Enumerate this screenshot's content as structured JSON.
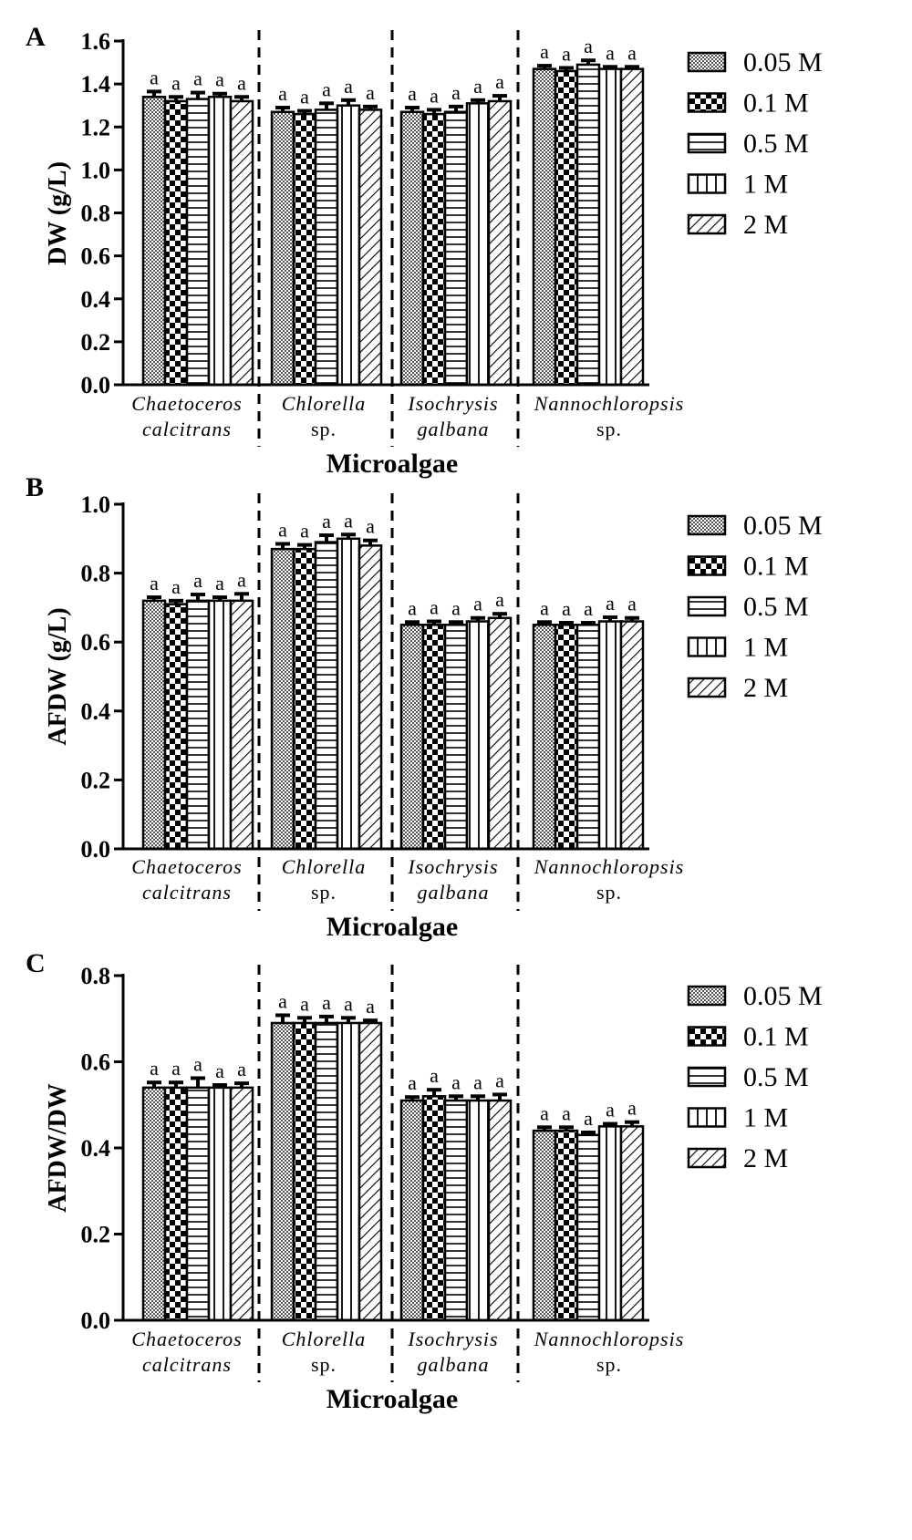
{
  "chart_data": [
    {
      "panel": "A",
      "type": "bar",
      "ylabel": "DW (g/L)",
      "xlabel": "Microalgae",
      "ylim": [
        0,
        1.6
      ],
      "yticks": [
        0.0,
        0.2,
        0.4,
        0.6,
        0.8,
        1.0,
        1.2,
        1.4,
        1.6
      ],
      "ytick_labels": [
        "0.0",
        "0.2",
        "0.4",
        "0.6",
        "0.8",
        "1.0",
        "1.2",
        "1.4",
        "1.6"
      ],
      "categories": [
        {
          "lines": [
            "Chaetoceros",
            "calcitrans"
          ],
          "italic": [
            true,
            true
          ]
        },
        {
          "lines": [
            "Chlorella",
            "sp."
          ],
          "italic": [
            true,
            false
          ]
        },
        {
          "lines": [
            "Isochrysis",
            "galbana"
          ],
          "italic": [
            true,
            true
          ]
        },
        {
          "lines": [
            "Nannochloropsis",
            "sp."
          ],
          "italic": [
            true,
            false
          ]
        }
      ],
      "legend": [
        "0.05 M",
        "0.1 M",
        "0.5 M",
        "1 M",
        "2 M"
      ],
      "series": [
        {
          "name": "0.05 M",
          "values": [
            1.34,
            1.27,
            1.27,
            1.47
          ],
          "errors": [
            0.025,
            0.02,
            0.02,
            0.015
          ]
        },
        {
          "name": "0.1 M",
          "values": [
            1.32,
            1.26,
            1.26,
            1.46
          ],
          "errors": [
            0.02,
            0.015,
            0.02,
            0.015
          ]
        },
        {
          "name": "0.5 M",
          "values": [
            1.33,
            1.28,
            1.27,
            1.49
          ],
          "errors": [
            0.03,
            0.03,
            0.025,
            0.02
          ]
        },
        {
          "name": "1 M",
          "values": [
            1.34,
            1.3,
            1.31,
            1.47
          ],
          "errors": [
            0.015,
            0.025,
            0.015,
            0.01
          ]
        },
        {
          "name": "2 M",
          "values": [
            1.32,
            1.28,
            1.32,
            1.47
          ],
          "errors": [
            0.02,
            0.015,
            0.025,
            0.01
          ]
        }
      ],
      "significance": [
        [
          "a",
          "a",
          "a",
          "a"
        ],
        [
          "a",
          "a",
          "a",
          "a"
        ],
        [
          "a",
          "a",
          "a",
          "a"
        ],
        [
          "a",
          "a",
          "a",
          "a"
        ],
        [
          "a",
          "a",
          "a",
          "a"
        ]
      ]
    },
    {
      "panel": "B",
      "type": "bar",
      "ylabel": "AFDW (g/L)",
      "xlabel": "Microalgae",
      "ylim": [
        0,
        1.0
      ],
      "yticks": [
        0.0,
        0.2,
        0.4,
        0.6,
        0.8,
        1.0
      ],
      "ytick_labels": [
        "0.0",
        "0.2",
        "0.4",
        "0.6",
        "0.8",
        "1.0"
      ],
      "categories": [
        {
          "lines": [
            "Chaetoceros",
            "calcitrans"
          ],
          "italic": [
            true,
            true
          ]
        },
        {
          "lines": [
            "Chlorella",
            "sp."
          ],
          "italic": [
            true,
            false
          ]
        },
        {
          "lines": [
            "Isochrysis",
            "galbana"
          ],
          "italic": [
            true,
            true
          ]
        },
        {
          "lines": [
            "Nannochloropsis",
            "sp."
          ],
          "italic": [
            true,
            false
          ]
        }
      ],
      "legend": [
        "0.05 M",
        "0.1 M",
        "0.5 M",
        "1 M",
        "2 M"
      ],
      "series": [
        {
          "name": "0.05 M",
          "values": [
            0.72,
            0.87,
            0.65,
            0.65
          ],
          "errors": [
            0.01,
            0.015,
            0.008,
            0.008
          ]
        },
        {
          "name": "0.1 M",
          "values": [
            0.71,
            0.87,
            0.65,
            0.65
          ],
          "errors": [
            0.01,
            0.012,
            0.01,
            0.006
          ]
        },
        {
          "name": "0.5 M",
          "values": [
            0.72,
            0.89,
            0.65,
            0.65
          ],
          "errors": [
            0.018,
            0.02,
            0.008,
            0.006
          ]
        },
        {
          "name": "1 M",
          "values": [
            0.72,
            0.9,
            0.66,
            0.66
          ],
          "errors": [
            0.01,
            0.012,
            0.01,
            0.012
          ]
        },
        {
          "name": "2 M",
          "values": [
            0.72,
            0.88,
            0.67,
            0.66
          ],
          "errors": [
            0.02,
            0.015,
            0.012,
            0.01
          ]
        }
      ],
      "significance": [
        [
          "a",
          "a",
          "a",
          "a"
        ],
        [
          "a",
          "a",
          "a",
          "a"
        ],
        [
          "a",
          "a",
          "a",
          "a"
        ],
        [
          "a",
          "a",
          "a",
          "a"
        ],
        [
          "a",
          "a",
          "a",
          "a"
        ]
      ]
    },
    {
      "panel": "C",
      "type": "bar",
      "ylabel": "AFDW/DW",
      "xlabel": "Microalgae",
      "ylim": [
        0,
        0.8
      ],
      "yticks": [
        0.0,
        0.2,
        0.4,
        0.6,
        0.8
      ],
      "ytick_labels": [
        "0.0",
        "0.2",
        "0.4",
        "0.6",
        "0.8"
      ],
      "categories": [
        {
          "lines": [
            "Chaetoceros",
            "calcitrans"
          ],
          "italic": [
            true,
            true
          ]
        },
        {
          "lines": [
            "Chlorella",
            "sp."
          ],
          "italic": [
            true,
            false
          ]
        },
        {
          "lines": [
            "Isochrysis",
            "galbana"
          ],
          "italic": [
            true,
            true
          ]
        },
        {
          "lines": [
            "Nannochloropsis",
            "sp."
          ],
          "italic": [
            true,
            false
          ]
        }
      ],
      "legend": [
        "0.05 M",
        "0.1 M",
        "0.5 M",
        "1 M",
        "2 M"
      ],
      "series": [
        {
          "name": "0.05 M",
          "values": [
            0.54,
            0.69,
            0.51,
            0.44
          ],
          "errors": [
            0.012,
            0.018,
            0.008,
            0.008
          ]
        },
        {
          "name": "0.1 M",
          "values": [
            0.54,
            0.69,
            0.52,
            0.44
          ],
          "errors": [
            0.012,
            0.012,
            0.015,
            0.008
          ]
        },
        {
          "name": "0.5 M",
          "values": [
            0.54,
            0.69,
            0.51,
            0.43
          ],
          "errors": [
            0.022,
            0.015,
            0.01,
            0.006
          ]
        },
        {
          "name": "1 M",
          "values": [
            0.54,
            0.69,
            0.51,
            0.45
          ],
          "errors": [
            0.006,
            0.012,
            0.01,
            0.006
          ]
        },
        {
          "name": "2 M",
          "values": [
            0.54,
            0.69,
            0.51,
            0.45
          ],
          "errors": [
            0.01,
            0.006,
            0.014,
            0.01
          ]
        }
      ],
      "significance": [
        [
          "a",
          "a",
          "a",
          "a"
        ],
        [
          "a",
          "a",
          "a",
          "a"
        ],
        [
          "a",
          "a",
          "a",
          "a"
        ],
        [
          "a",
          "a",
          "a",
          "a"
        ],
        [
          "a",
          "a",
          "a",
          "a"
        ]
      ]
    }
  ]
}
